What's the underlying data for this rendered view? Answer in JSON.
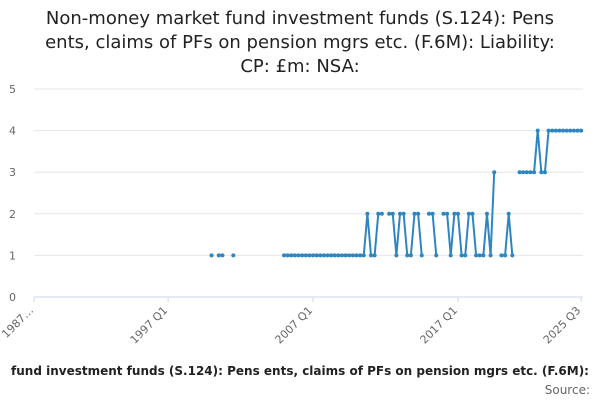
{
  "chart_data": {
    "type": "line",
    "title_lines": [
      "Non-money market fund investment funds (S.124): Pens",
      "ents, claims of PFs on pension mgrs etc. (F.6M): Liability:",
      "CP: £m: NSA:"
    ],
    "xlabel": "",
    "ylabel": "",
    "y_ticks": [
      0,
      1,
      2,
      3,
      4,
      5
    ],
    "ylim": [
      0,
      5
    ],
    "x_ticks": [
      "1987…",
      "1997 Q1",
      "2007 Q1",
      "2017 Q1",
      "2025 Q3"
    ],
    "grid": true,
    "legend_text": "fund investment funds (S.124): Pens ents, claims of PFs on pension mgrs etc. (F.6M):",
    "credit": "Source:",
    "colors": {
      "series": "#2e86c1",
      "grid": "#e6e6e6",
      "text": "#222222",
      "muted": "#666666"
    },
    "series": [
      {
        "x": [
          "2000 Q1",
          "2000 Q3",
          "2000 Q4",
          "2001 Q3",
          "2005 Q1",
          "2005 Q2",
          "2005 Q3",
          "2005 Q4",
          "2006 Q1",
          "2006 Q2",
          "2006 Q3",
          "2006 Q4",
          "2007 Q1",
          "2007 Q2",
          "2007 Q3",
          "2007 Q4",
          "2008 Q1",
          "2008 Q2",
          "2008 Q3",
          "2008 Q4",
          "2009 Q1",
          "2009 Q2",
          "2009 Q3",
          "2009 Q4",
          "2010 Q1",
          "2010 Q2",
          "2010 Q3",
          "2010 Q4",
          "2011 Q1",
          "2011 Q2",
          "2011 Q3",
          "2011 Q4",
          "2012 Q1",
          "2012 Q2",
          "2012 Q3",
          "2012 Q4",
          "2013 Q1",
          "2013 Q2",
          "2013 Q3",
          "2013 Q4",
          "2014 Q1",
          "2014 Q2",
          "2014 Q3",
          "2014 Q4",
          "2015 Q1",
          "2015 Q2",
          "2015 Q3",
          "2015 Q4",
          "2016 Q1",
          "2016 Q2",
          "2016 Q3",
          "2016 Q4",
          "2017 Q1",
          "2017 Q2",
          "2017 Q3",
          "2017 Q4",
          "2018 Q1",
          "2018 Q2",
          "2018 Q3",
          "2018 Q4",
          "2019 Q1",
          "2019 Q2",
          "2019 Q3",
          "2019 Q4",
          "2020 Q1",
          "2020 Q2",
          "2020 Q3",
          "2020 Q4",
          "2021 Q1",
          "2021 Q2",
          "2021 Q3",
          "2021 Q4",
          "2022 Q1",
          "2022 Q2",
          "2022 Q3",
          "2022 Q4",
          "2023 Q1",
          "2023 Q2",
          "2023 Q3",
          "2023 Q4",
          "2024 Q1",
          "2024 Q2",
          "2024 Q3",
          "2024 Q4",
          "2025 Q1",
          "2025 Q2",
          "2025 Q3"
        ],
        "values": [
          1,
          1,
          1,
          1,
          1,
          1,
          1,
          1,
          1,
          1,
          1,
          1,
          1,
          1,
          1,
          1,
          1,
          1,
          1,
          1,
          1,
          1,
          1,
          1,
          1,
          1,
          1,
          2,
          1,
          1,
          2,
          2,
          null,
          2,
          2,
          1,
          2,
          2,
          1,
          1,
          2,
          2,
          1,
          null,
          2,
          2,
          1,
          null,
          2,
          2,
          1,
          2,
          2,
          1,
          1,
          2,
          2,
          1,
          1,
          1,
          2,
          1,
          3,
          null,
          1,
          1,
          2,
          1,
          null,
          3,
          3,
          3,
          3,
          3,
          4,
          3,
          3,
          4,
          4,
          4,
          4,
          4,
          4,
          4,
          4,
          4,
          4
        ]
      }
    ]
  }
}
